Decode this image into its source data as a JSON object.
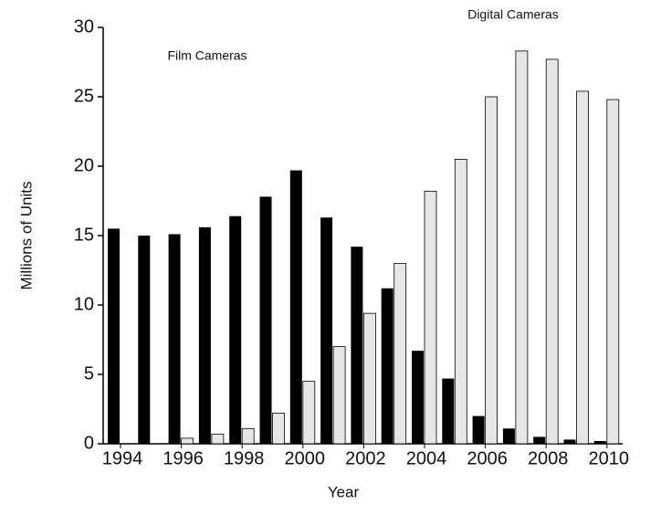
{
  "chart_data": {
    "type": "bar",
    "x_label": "Year",
    "y_label": "Millions of Units",
    "categories": [
      "1994",
      null,
      "1996",
      null,
      "1998",
      null,
      "2000",
      null,
      "2002",
      null,
      "2004",
      null,
      "2006",
      null,
      "2008",
      null,
      "2010"
    ],
    "series": [
      {
        "name": "Film Cameras",
        "color": "#000000",
        "values": [
          15.5,
          15.0,
          15.1,
          15.6,
          16.4,
          17.8,
          19.7,
          16.3,
          14.2,
          11.2,
          6.7,
          4.7,
          2.0,
          1.1,
          0.5,
          0.3,
          0.2
        ]
      },
      {
        "name": "Digital Cameras",
        "color": "#e6e6e6",
        "values": [
          0,
          0,
          0.4,
          0.7,
          1.1,
          2.2,
          4.5,
          7.0,
          9.4,
          13.0,
          18.2,
          20.5,
          25.0,
          28.3,
          27.7,
          25.4,
          24.8
        ]
      }
    ],
    "ylim": [
      0,
      30
    ],
    "yticks": [
      0,
      5,
      10,
      15,
      20,
      25,
      30
    ]
  }
}
